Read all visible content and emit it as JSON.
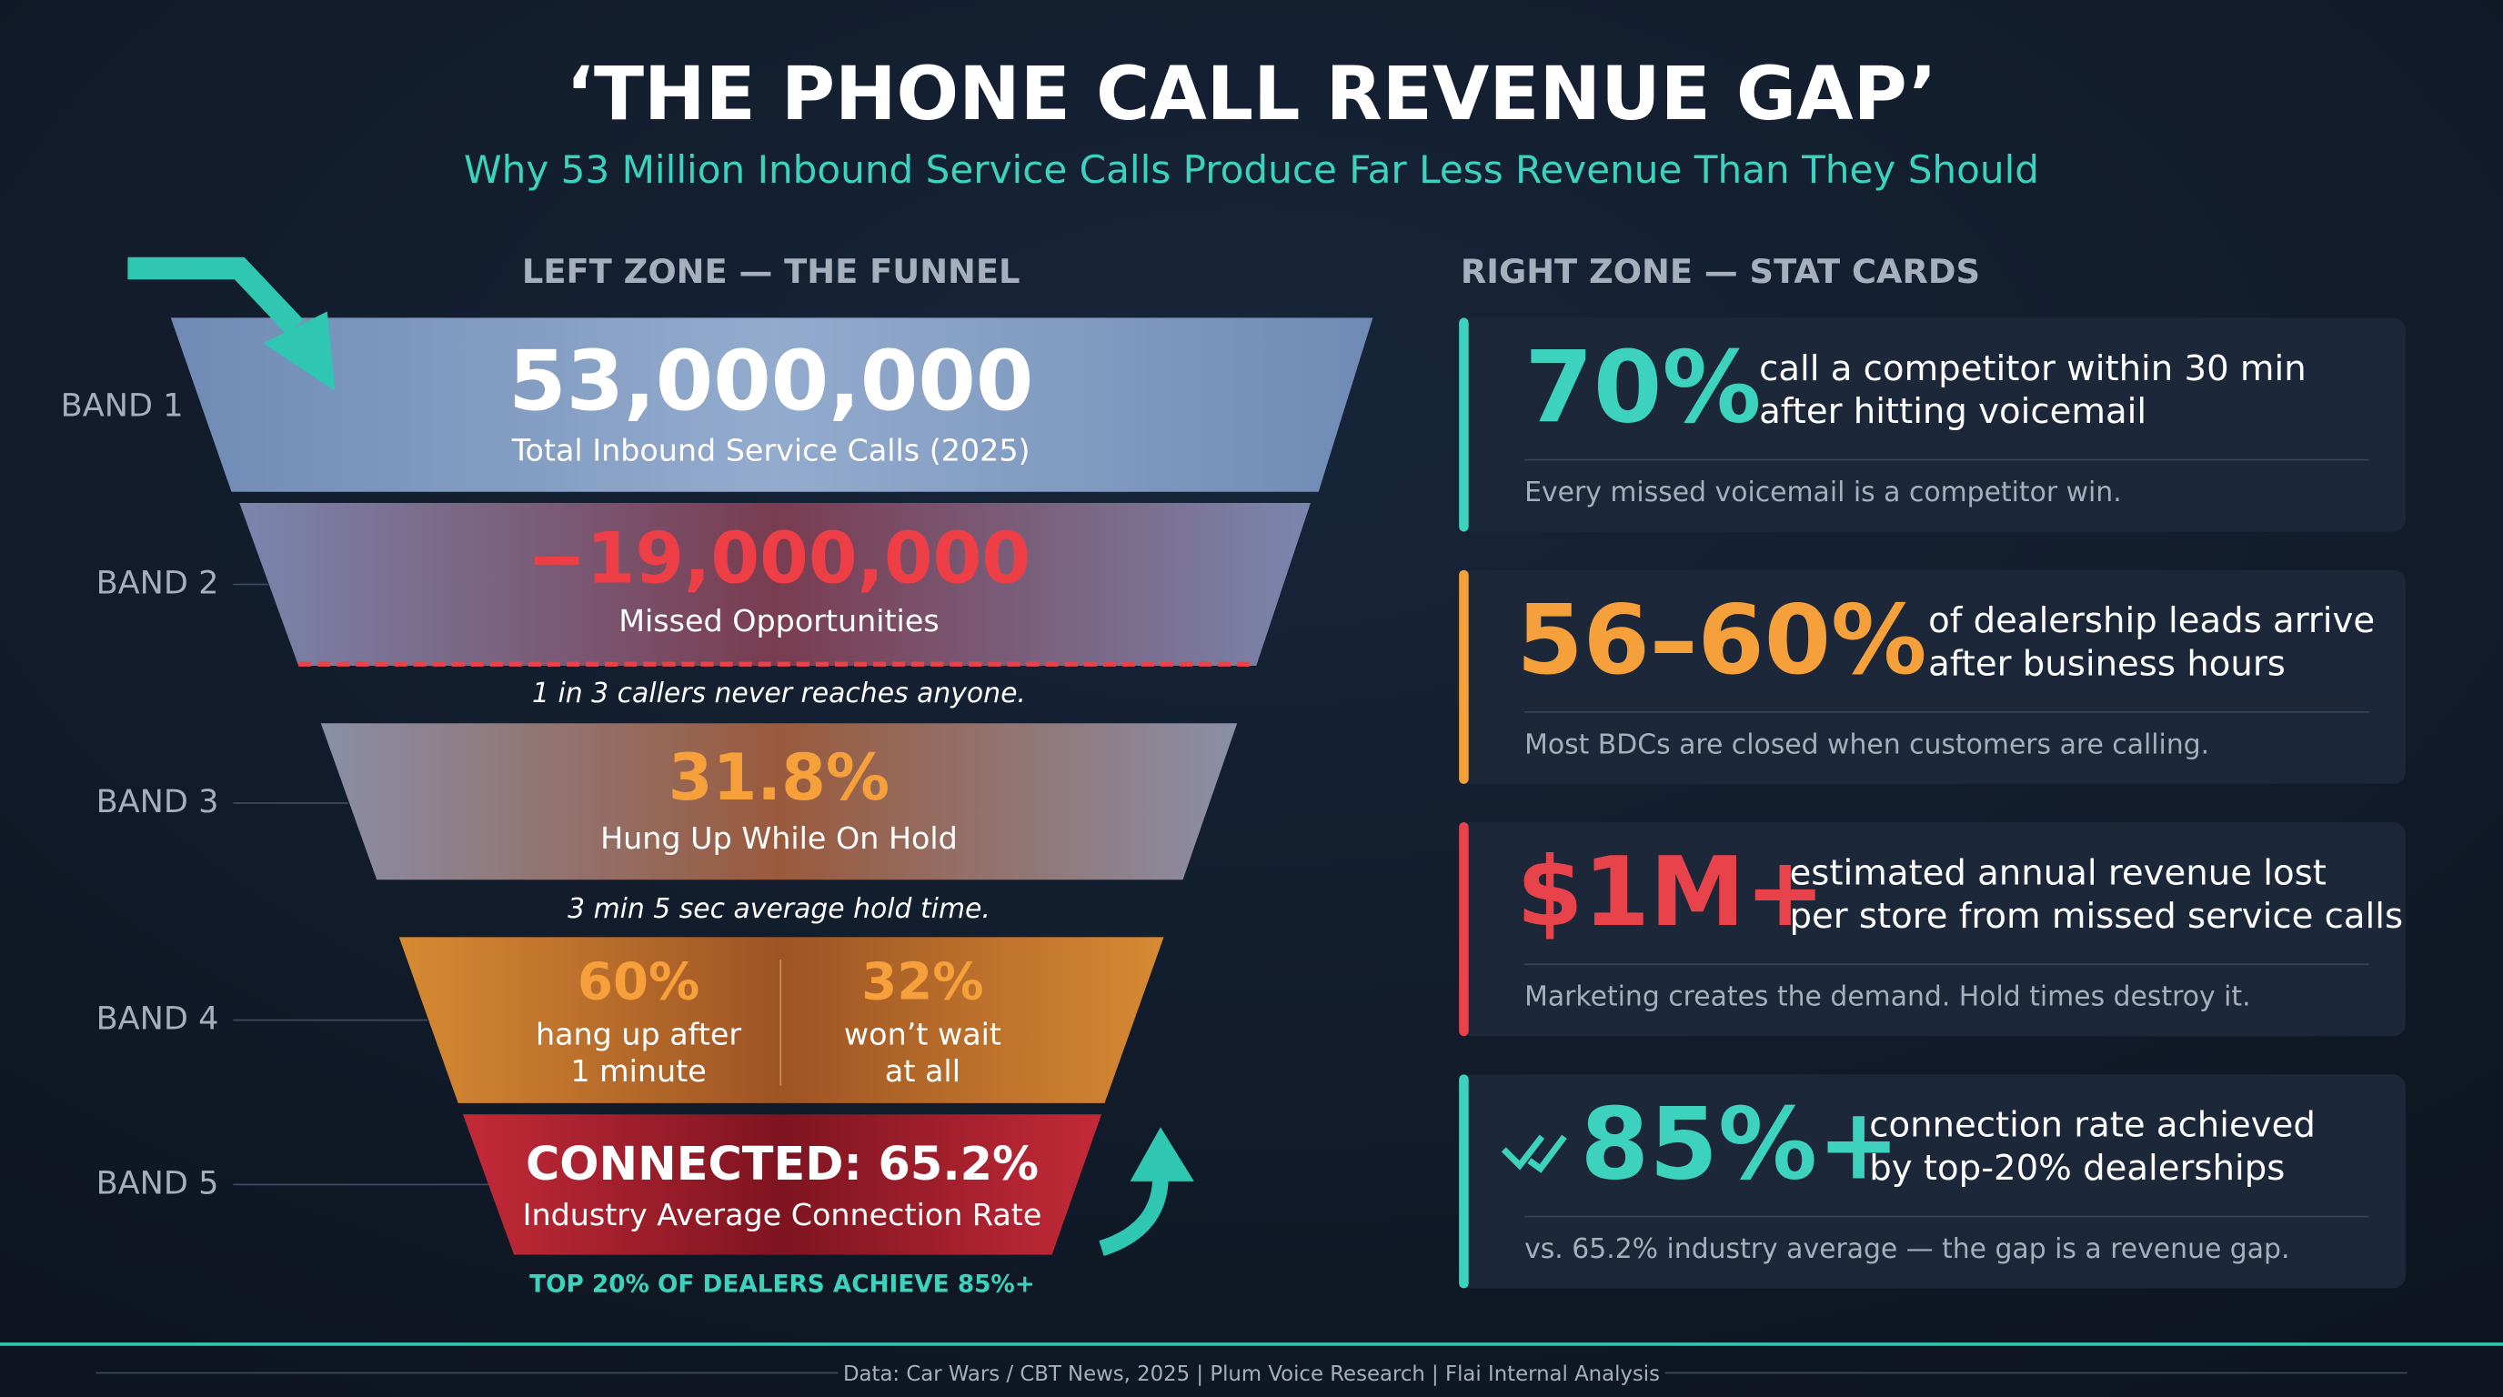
{
  "header": {
    "title": "‘THE PHONE CALL REVENUE GAP’",
    "subtitle": "Why 53 Million Inbound Service Calls Produce Far Less Revenue Than They Should"
  },
  "funnel": {
    "heading": "LEFT ZONE — THE FUNNEL",
    "bands": [
      {
        "label": "BAND 1",
        "value": "53,000,000",
        "caption": "Total Inbound Service Calls (2025)"
      },
      {
        "label": "BAND 2",
        "value": "−19,000,000",
        "caption": "Missed Opportunities",
        "note": "1 in 3 callers never reaches anyone."
      },
      {
        "label": "BAND 3",
        "value": "31.8%",
        "caption": "Hung Up While On Hold",
        "note": "3 min 5 sec average hold time."
      },
      {
        "label": "BAND 4",
        "split": [
          {
            "value": "60%",
            "caption": [
              "hang up after",
              "1 minute"
            ]
          },
          {
            "value": "32%",
            "caption": [
              "won’t wait",
              "at all"
            ]
          }
        ]
      },
      {
        "label": "BAND 5",
        "value": "CONNECTED: 65.2%",
        "caption": "Industry Average Connection Rate",
        "note": "TOP 20% OF DEALERS ACHIEVE 85%+"
      }
    ]
  },
  "cards": {
    "heading": "RIGHT ZONE — STAT CARDS",
    "items": [
      {
        "stat": "70%",
        "text": [
          "call a competitor within 30 min",
          "after hitting voicemail"
        ],
        "note": "Every missed voicemail is a competitor win."
      },
      {
        "stat": "56–60%",
        "text": [
          "of dealership leads arrive",
          "after business hours"
        ],
        "note": "Most BDCs are closed when customers are calling."
      },
      {
        "stat": "$1M+",
        "text": [
          "estimated annual revenue lost",
          "per store from missed service calls"
        ],
        "note": "Marketing creates the demand. Hold times destroy it."
      },
      {
        "stat": "85%+",
        "text": [
          "connection rate achieved",
          "by top-20% dealerships"
        ],
        "note": "vs. 65.2% industry average — the gap is a revenue gap."
      }
    ]
  },
  "footer": {
    "source": "Data: Car Wars / CBT News, 2025 | Plum Voice Research | Flai Internal Analysis"
  }
}
